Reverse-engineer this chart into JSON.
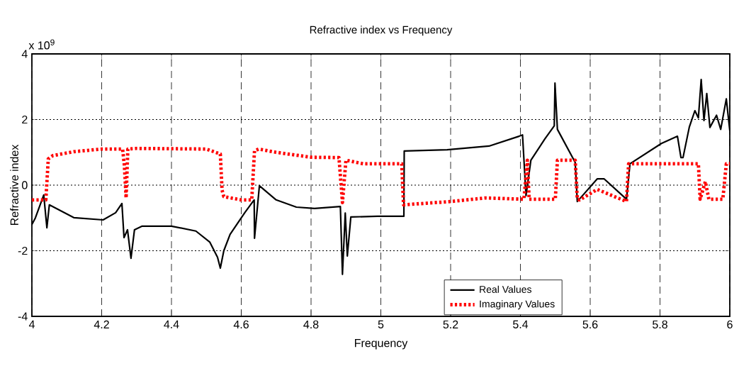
{
  "chart_data": {
    "type": "line",
    "title": "Refractive index vs Frequency",
    "xlabel": "Frequency",
    "ylabel": "Refractive index",
    "annotations": [
      "x 10$^{9}$"
    ],
    "xlim": [
      4,
      6
    ],
    "ylim": [
      -4,
      4
    ],
    "xticks": [
      4,
      4.2,
      4.4,
      4.6,
      4.8,
      5,
      5.2,
      5.4,
      5.6,
      5.8,
      6
    ],
    "yticks": [
      -4,
      -2,
      0,
      2,
      4
    ],
    "grid": true,
    "legend": "bottom right",
    "marker": "none",
    "series": [
      {
        "name": "Real Values",
        "color": "#000000",
        "line_style": "solid",
        "x": [
          4.0,
          4.01,
          4.034,
          4.043,
          4.05,
          4.12,
          4.204,
          4.24,
          4.258,
          4.264,
          4.274,
          4.284,
          4.294,
          4.316,
          4.4,
          4.47,
          4.51,
          4.532,
          4.54,
          4.55,
          4.568,
          4.61,
          4.63,
          4.637,
          4.638,
          4.652,
          4.7,
          4.758,
          4.81,
          4.884,
          4.89,
          4.898,
          4.904,
          4.914,
          4.99,
          5.066,
          5.067,
          5.19,
          5.31,
          5.396,
          5.406,
          5.416,
          5.43,
          5.47,
          5.497,
          5.499,
          5.506,
          5.557,
          5.563,
          5.62,
          5.64,
          5.704,
          5.714,
          5.804,
          5.85,
          5.86,
          5.866,
          5.884,
          5.9,
          5.91,
          5.918,
          5.926,
          5.934,
          5.943,
          5.962,
          5.974,
          5.99,
          6.0
        ],
        "values": [
          -1.2,
          -1.0,
          -0.3,
          -1.3,
          -0.6,
          -0.99,
          -1.06,
          -0.84,
          -0.56,
          -1.6,
          -1.36,
          -2.23,
          -1.36,
          -1.25,
          -1.25,
          -1.4,
          -1.74,
          -2.2,
          -2.53,
          -2.0,
          -1.5,
          -0.84,
          -0.55,
          -0.45,
          -1.62,
          -0.02,
          -0.45,
          -0.67,
          -0.71,
          -0.65,
          -2.72,
          -0.85,
          -2.16,
          -0.97,
          -0.95,
          -0.95,
          1.04,
          1.08,
          1.19,
          1.49,
          1.53,
          -0.32,
          0.76,
          1.41,
          1.81,
          3.11,
          1.7,
          0.69,
          -0.5,
          0.19,
          0.19,
          -0.43,
          0.65,
          1.27,
          1.49,
          0.84,
          0.84,
          1.77,
          2.27,
          2.05,
          3.22,
          1.97,
          2.79,
          1.76,
          2.13,
          1.7,
          2.63,
          1.66
        ]
      },
      {
        "name": "Imaginary Values",
        "color": "#ff0000",
        "line_style": "dotted",
        "x": [
          4.0,
          4.04,
          4.047,
          4.06,
          4.12,
          4.2,
          4.26,
          4.265,
          4.27,
          4.275,
          4.3,
          4.5,
          4.54,
          4.545,
          4.55,
          4.6,
          4.63,
          4.638,
          4.65,
          4.7,
          4.8,
          4.88,
          4.89,
          4.9,
          4.95,
          5.06,
          5.065,
          5.2,
          5.3,
          5.41,
          5.42,
          5.425,
          5.5,
          5.506,
          5.557,
          5.563,
          5.57,
          5.62,
          5.704,
          5.71,
          5.91,
          5.915,
          5.93,
          5.94,
          5.98,
          5.99,
          6.0
        ],
        "values": [
          -0.45,
          -0.45,
          0.8,
          0.9,
          1.02,
          1.1,
          1.1,
          0.6,
          -0.39,
          1.1,
          1.12,
          1.1,
          0.95,
          -0.15,
          -0.35,
          -0.45,
          -0.45,
          1.05,
          1.1,
          1.0,
          0.85,
          0.84,
          -0.53,
          0.76,
          0.65,
          0.65,
          -0.6,
          -0.5,
          -0.39,
          -0.43,
          0.76,
          -0.43,
          -0.43,
          0.76,
          0.76,
          -0.43,
          -0.45,
          -0.13,
          -0.5,
          0.65,
          0.65,
          -0.43,
          0.11,
          -0.43,
          -0.43,
          0.65,
          0.65
        ]
      }
    ]
  }
}
